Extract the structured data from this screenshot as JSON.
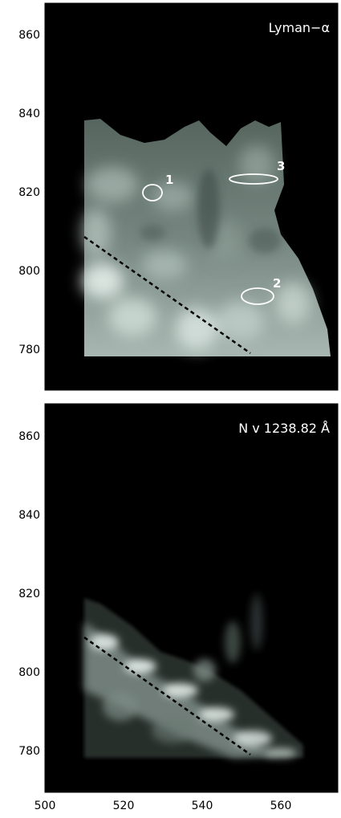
{
  "panels": [
    {
      "title": "Lyman−α",
      "y_ticks": [
        "860",
        "840",
        "820",
        "800",
        "780"
      ],
      "regions": [
        {
          "label": "1"
        },
        {
          "label": "3"
        },
        {
          "label": "2"
        }
      ]
    },
    {
      "title": "N v 1238.82 Å",
      "y_ticks": [
        "860",
        "840",
        "820",
        "800",
        "780"
      ],
      "x_ticks": [
        "500",
        "520",
        "540",
        "560"
      ]
    }
  ],
  "colors": {
    "background": "#000000",
    "frame": "#000000",
    "overlay": "#ffffff",
    "emission_dim": "#5b6b66",
    "emission_bright": "#d9e5e0"
  }
}
